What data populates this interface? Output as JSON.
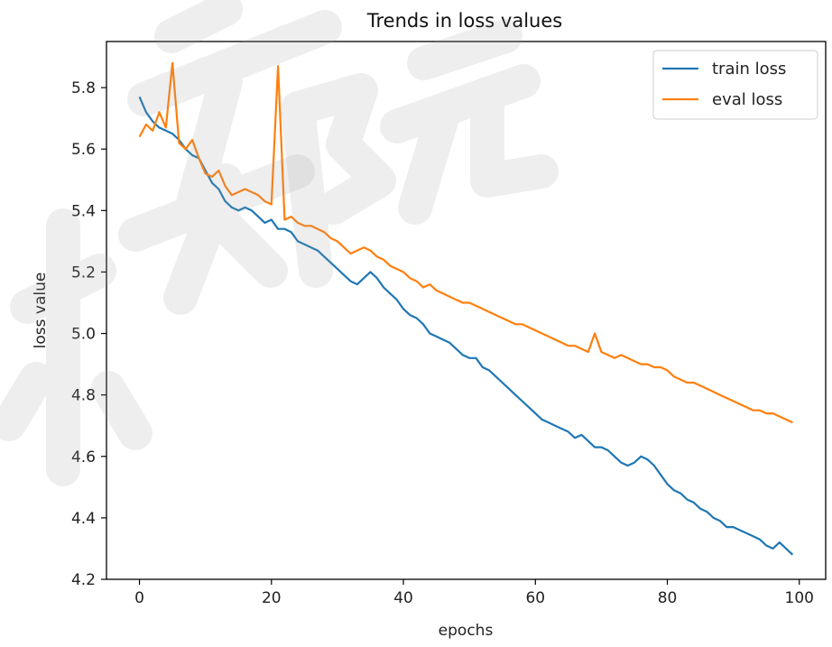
{
  "chart_data": {
    "type": "line",
    "title": "Trends in loss values",
    "xlabel": "epochs",
    "ylabel": "loss value",
    "xlim": [
      -5,
      104
    ],
    "ylim": [
      4.2,
      5.95
    ],
    "xticks": [
      0,
      20,
      40,
      60,
      80,
      100
    ],
    "xtick_labels": [
      "0",
      "20",
      "40",
      "60",
      "80",
      "100"
    ],
    "yticks": [
      4.2,
      4.4,
      4.6,
      4.8,
      5.0,
      5.2,
      5.4,
      5.6,
      5.8
    ],
    "ytick_labels": [
      "4.2",
      "4.4",
      "4.6",
      "4.8",
      "5.0",
      "5.2",
      "5.4",
      "5.6",
      "5.8"
    ],
    "grid": false,
    "legend_position": "top-right",
    "x": [
      0,
      1,
      2,
      3,
      4,
      5,
      6,
      7,
      8,
      9,
      10,
      11,
      12,
      13,
      14,
      15,
      16,
      17,
      18,
      19,
      20,
      21,
      22,
      23,
      24,
      25,
      26,
      27,
      28,
      29,
      30,
      31,
      32,
      33,
      34,
      35,
      36,
      37,
      38,
      39,
      40,
      41,
      42,
      43,
      44,
      45,
      46,
      47,
      48,
      49,
      50,
      51,
      52,
      53,
      54,
      55,
      56,
      57,
      58,
      59,
      60,
      61,
      62,
      63,
      64,
      65,
      66,
      67,
      68,
      69,
      70,
      71,
      72,
      73,
      74,
      75,
      76,
      77,
      78,
      79,
      80,
      81,
      82,
      83,
      84,
      85,
      86,
      87,
      88,
      89,
      90,
      91,
      92,
      93,
      94,
      95,
      96,
      97,
      98,
      99
    ],
    "series": [
      {
        "name": "train loss",
        "color": "#1f77b4",
        "values": [
          5.77,
          5.72,
          5.69,
          5.67,
          5.66,
          5.65,
          5.63,
          5.6,
          5.58,
          5.57,
          5.53,
          5.49,
          5.47,
          5.43,
          5.41,
          5.4,
          5.41,
          5.4,
          5.38,
          5.36,
          5.37,
          5.34,
          5.34,
          5.33,
          5.3,
          5.29,
          5.28,
          5.27,
          5.25,
          5.23,
          5.21,
          5.19,
          5.17,
          5.16,
          5.18,
          5.2,
          5.18,
          5.15,
          5.13,
          5.11,
          5.08,
          5.06,
          5.05,
          5.03,
          5.0,
          4.99,
          4.98,
          4.97,
          4.95,
          4.93,
          4.92,
          4.92,
          4.89,
          4.88,
          4.86,
          4.84,
          4.82,
          4.8,
          4.78,
          4.76,
          4.74,
          4.72,
          4.71,
          4.7,
          4.69,
          4.68,
          4.66,
          4.67,
          4.65,
          4.63,
          4.63,
          4.62,
          4.6,
          4.58,
          4.57,
          4.58,
          4.6,
          4.59,
          4.57,
          4.54,
          4.51,
          4.49,
          4.48,
          4.46,
          4.45,
          4.43,
          4.42,
          4.4,
          4.39,
          4.37,
          4.37,
          4.36,
          4.35,
          4.34,
          4.33,
          4.31,
          4.3,
          4.32,
          4.3,
          4.28
        ]
      },
      {
        "name": "eval loss",
        "color": "#ff7f0e",
        "values": [
          5.64,
          5.68,
          5.66,
          5.72,
          5.67,
          5.88,
          5.62,
          5.6,
          5.63,
          5.57,
          5.52,
          5.51,
          5.53,
          5.48,
          5.45,
          5.46,
          5.47,
          5.46,
          5.45,
          5.43,
          5.42,
          5.87,
          5.37,
          5.38,
          5.36,
          5.35,
          5.35,
          5.34,
          5.33,
          5.31,
          5.3,
          5.28,
          5.26,
          5.27,
          5.28,
          5.27,
          5.25,
          5.24,
          5.22,
          5.21,
          5.2,
          5.18,
          5.17,
          5.15,
          5.16,
          5.14,
          5.13,
          5.12,
          5.11,
          5.1,
          5.1,
          5.09,
          5.08,
          5.07,
          5.06,
          5.05,
          5.04,
          5.03,
          5.03,
          5.02,
          5.01,
          5.0,
          4.99,
          4.98,
          4.97,
          4.96,
          4.96,
          4.95,
          4.94,
          5.0,
          4.94,
          4.93,
          4.92,
          4.93,
          4.92,
          4.91,
          4.9,
          4.9,
          4.89,
          4.89,
          4.88,
          4.86,
          4.85,
          4.84,
          4.84,
          4.83,
          4.82,
          4.81,
          4.8,
          4.79,
          4.78,
          4.77,
          4.76,
          4.75,
          4.75,
          4.74,
          4.74,
          4.73,
          4.72,
          4.71
        ]
      }
    ]
  }
}
